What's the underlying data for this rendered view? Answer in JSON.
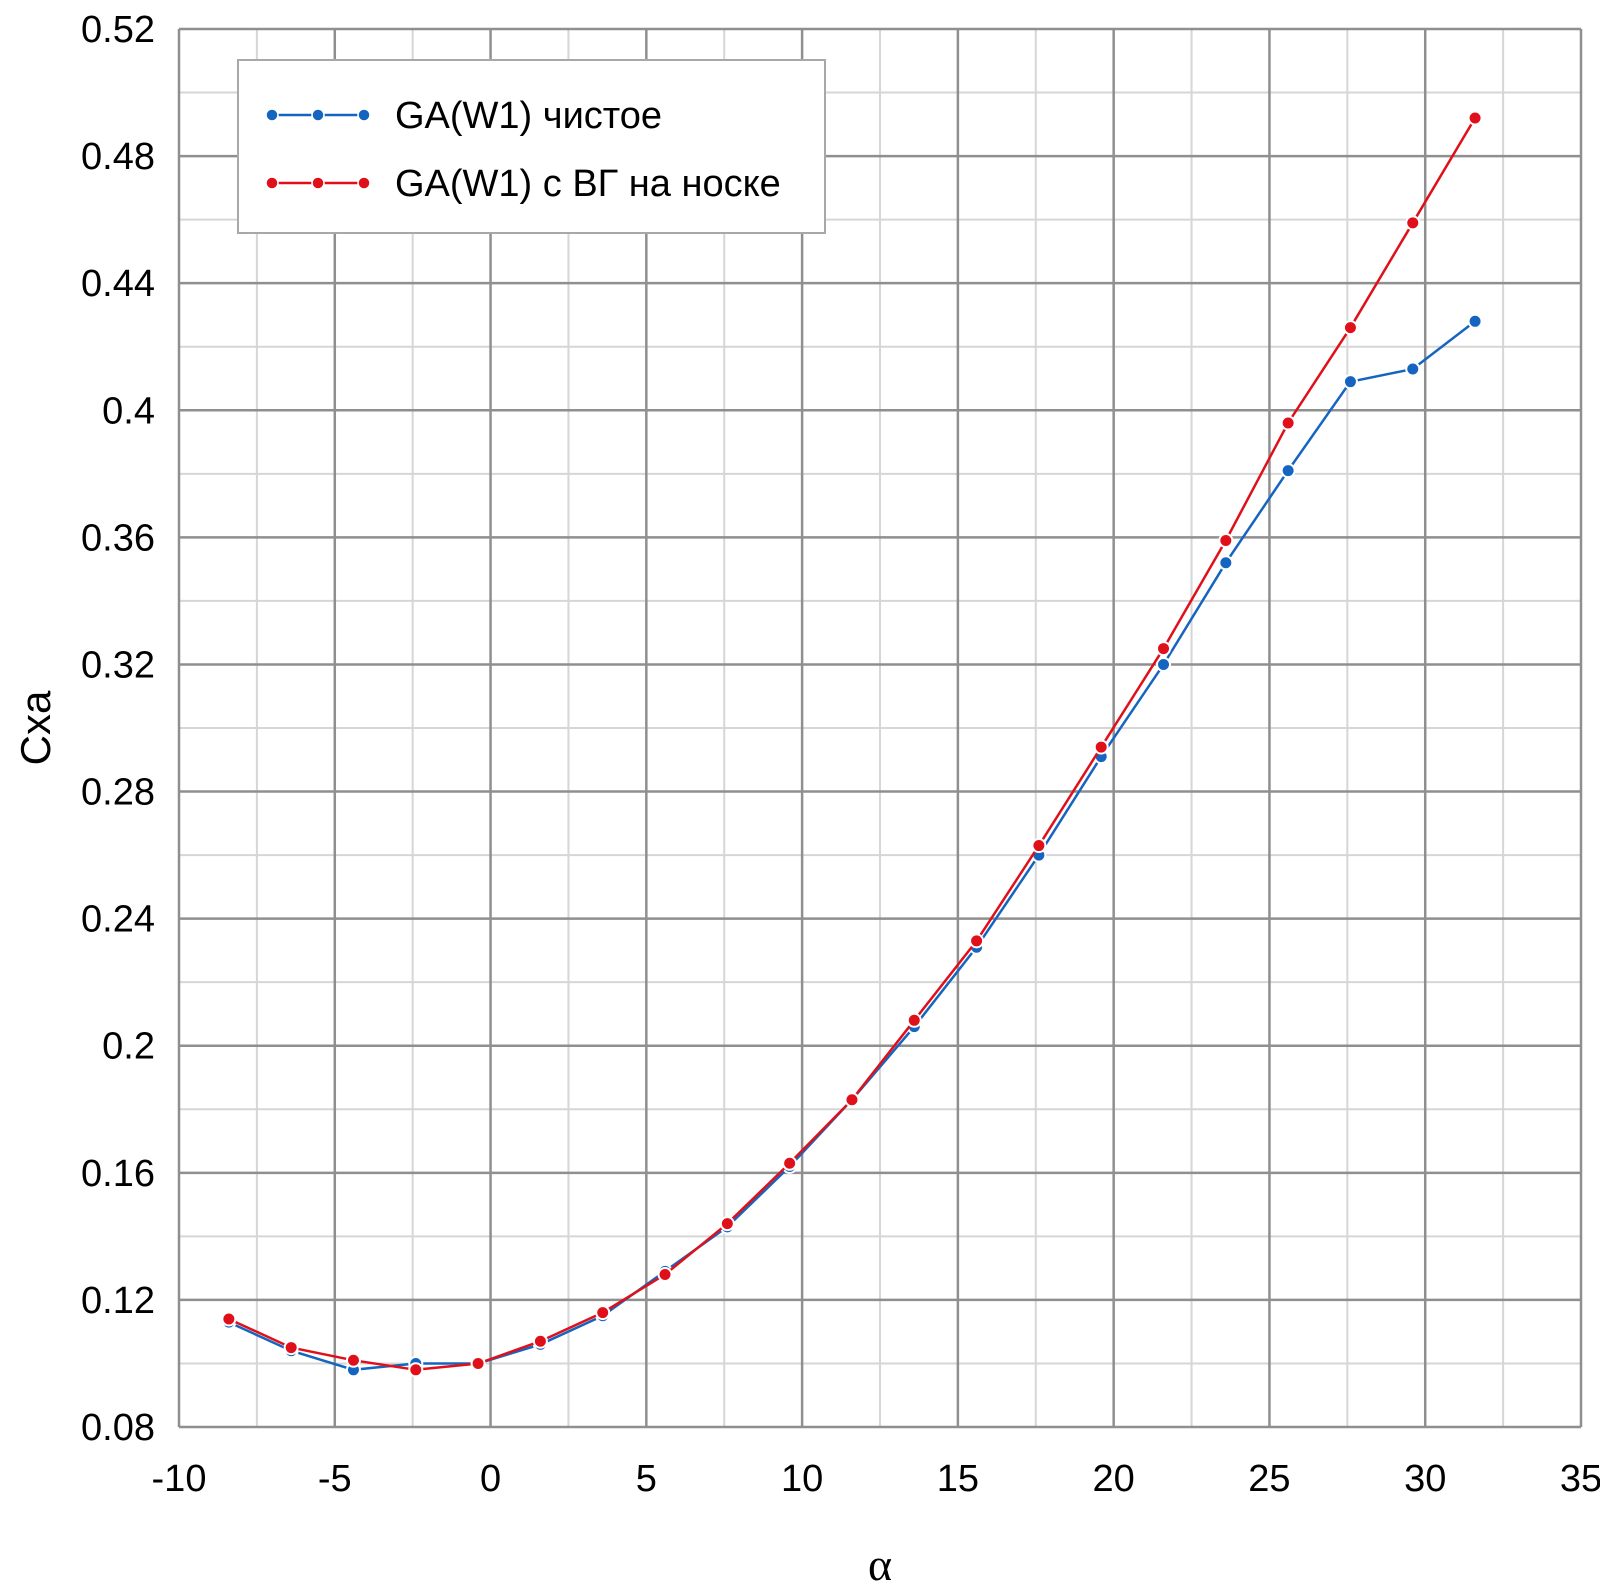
{
  "chart_data": {
    "type": "line",
    "title": "",
    "xlabel": "α",
    "ylabel": "Cxa",
    "xlim": [
      -10,
      35
    ],
    "ylim": [
      0.08,
      0.52
    ],
    "x_ticks": [
      "-10",
      "-5",
      "0",
      "5",
      "10",
      "15",
      "20",
      "25",
      "30",
      "35"
    ],
    "y_ticks": [
      "0.08",
      "0.12",
      "0.16",
      "0.2",
      "0.24",
      "0.28",
      "0.32",
      "0.36",
      "0.4",
      "0.44",
      "0.48",
      "0.52"
    ],
    "grid": true,
    "minor_grid": true,
    "legend_position": "top-left",
    "series": [
      {
        "name": "GA(W1) чистое",
        "color": "#1565C0",
        "x": [
          -8.4,
          -6.4,
          -4.4,
          -2.4,
          -0.4,
          1.6,
          3.6,
          5.6,
          7.6,
          9.6,
          11.6,
          13.6,
          15.6,
          17.6,
          19.6,
          21.6,
          23.6,
          25.6,
          27.6,
          29.6,
          31.6
        ],
        "y": [
          0.113,
          0.104,
          0.098,
          0.1,
          0.1,
          0.106,
          0.115,
          0.129,
          0.143,
          0.162,
          0.183,
          0.206,
          0.231,
          0.26,
          0.291,
          0.32,
          0.352,
          0.381,
          0.409,
          0.413,
          0.428
        ]
      },
      {
        "name": "GA(W1) с ВГ на носке",
        "color": "#E0101A",
        "x": [
          -8.4,
          -6.4,
          -4.4,
          -2.4,
          -0.4,
          1.6,
          3.6,
          5.6,
          7.6,
          9.6,
          11.6,
          13.6,
          15.6,
          17.6,
          19.6,
          21.6,
          23.6,
          25.6,
          27.6,
          29.6,
          31.6
        ],
        "y": [
          0.114,
          0.105,
          0.101,
          0.098,
          0.1,
          0.107,
          0.116,
          0.128,
          0.144,
          0.163,
          0.183,
          0.208,
          0.233,
          0.263,
          0.294,
          0.325,
          0.359,
          0.396,
          0.426,
          0.459,
          0.492
        ]
      }
    ]
  }
}
